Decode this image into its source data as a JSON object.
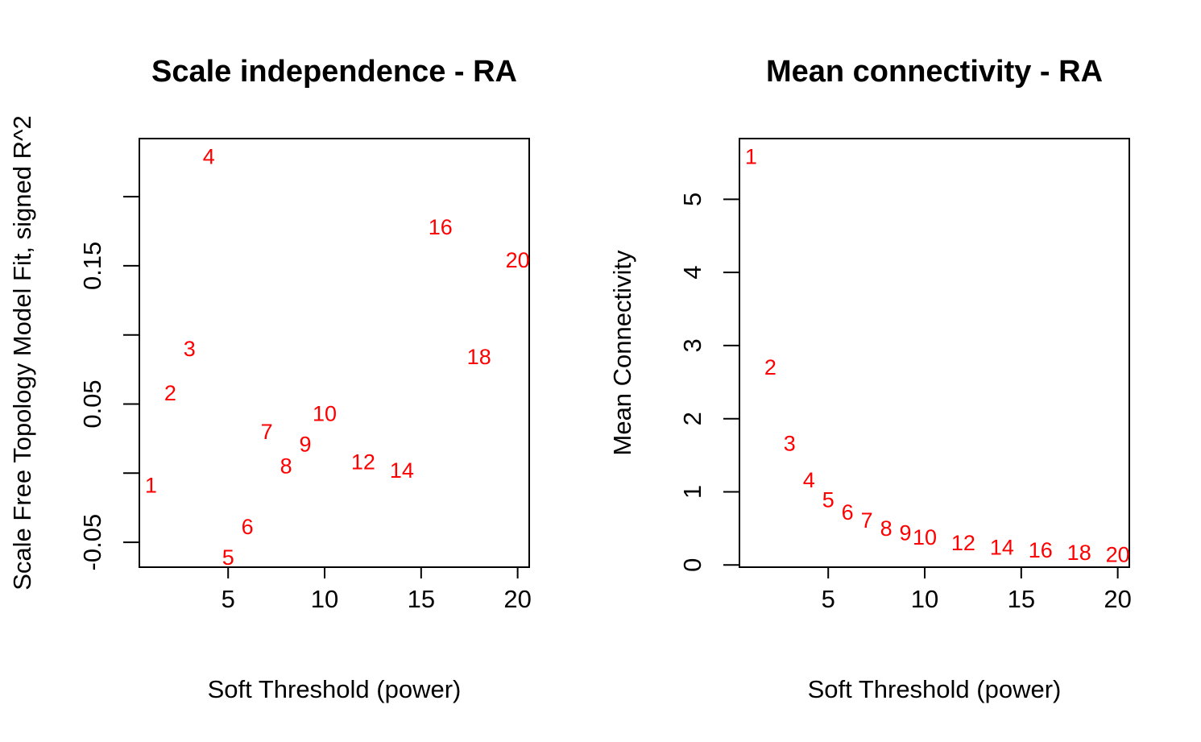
{
  "colors": {
    "points": "#ff0000",
    "axes": "#000000",
    "background": "#ffffff"
  },
  "chart_data": [
    {
      "type": "scatter",
      "title": "Scale independence - RA",
      "xlabel": "Soft Threshold (power)",
      "ylabel": "Scale Free Topology Model Fit, signed R^2",
      "xlim": [
        0.4,
        20.6
      ],
      "ylim": [
        -0.068,
        0.242
      ],
      "xticks": [
        5,
        10,
        15,
        20
      ],
      "yticks": [
        -0.05,
        0.0,
        0.05,
        0.1,
        0.15,
        0.2
      ],
      "ytick_labels": [
        "-0.05",
        "",
        "0.05",
        "",
        "0.15",
        ""
      ],
      "grid": false,
      "marker": "text labels",
      "points": [
        {
          "x": 1,
          "y": -0.009,
          "label": "1"
        },
        {
          "x": 2,
          "y": 0.058,
          "label": "2"
        },
        {
          "x": 3,
          "y": 0.09,
          "label": "3"
        },
        {
          "x": 4,
          "y": 0.229,
          "label": "4"
        },
        {
          "x": 5,
          "y": -0.061,
          "label": "5"
        },
        {
          "x": 6,
          "y": -0.039,
          "label": "6"
        },
        {
          "x": 7,
          "y": 0.03,
          "label": "7"
        },
        {
          "x": 8,
          "y": 0.005,
          "label": "8"
        },
        {
          "x": 9,
          "y": 0.021,
          "label": "9"
        },
        {
          "x": 10,
          "y": 0.043,
          "label": "10"
        },
        {
          "x": 12,
          "y": 0.008,
          "label": "12"
        },
        {
          "x": 14,
          "y": 0.002,
          "label": "14"
        },
        {
          "x": 16,
          "y": 0.178,
          "label": "16"
        },
        {
          "x": 18,
          "y": 0.084,
          "label": "18"
        },
        {
          "x": 20,
          "y": 0.154,
          "label": "20"
        }
      ]
    },
    {
      "type": "scatter",
      "title": "Mean connectivity - RA",
      "xlabel": "Soft Threshold (power)",
      "ylabel": "Mean Connectivity",
      "xlim": [
        0.4,
        20.6
      ],
      "ylim": [
        -0.03,
        5.83
      ],
      "xticks": [
        5,
        10,
        15,
        20
      ],
      "yticks": [
        0,
        1,
        2,
        3,
        4,
        5
      ],
      "ytick_labels": [
        "0",
        "1",
        "2",
        "3",
        "4",
        "5"
      ],
      "grid": false,
      "marker": "text labels",
      "points": [
        {
          "x": 1,
          "y": 5.58,
          "label": "1"
        },
        {
          "x": 2,
          "y": 2.7,
          "label": "2"
        },
        {
          "x": 3,
          "y": 1.66,
          "label": "3"
        },
        {
          "x": 4,
          "y": 1.16,
          "label": "4"
        },
        {
          "x": 5,
          "y": 0.89,
          "label": "5"
        },
        {
          "x": 6,
          "y": 0.72,
          "label": "6"
        },
        {
          "x": 7,
          "y": 0.61,
          "label": "7"
        },
        {
          "x": 8,
          "y": 0.5,
          "label": "8"
        },
        {
          "x": 9,
          "y": 0.44,
          "label": "9"
        },
        {
          "x": 10,
          "y": 0.38,
          "label": "10"
        },
        {
          "x": 12,
          "y": 0.3,
          "label": "12"
        },
        {
          "x": 14,
          "y": 0.24,
          "label": "14"
        },
        {
          "x": 16,
          "y": 0.2,
          "label": "16"
        },
        {
          "x": 18,
          "y": 0.17,
          "label": "18"
        },
        {
          "x": 20,
          "y": 0.14,
          "label": "20"
        }
      ]
    }
  ]
}
